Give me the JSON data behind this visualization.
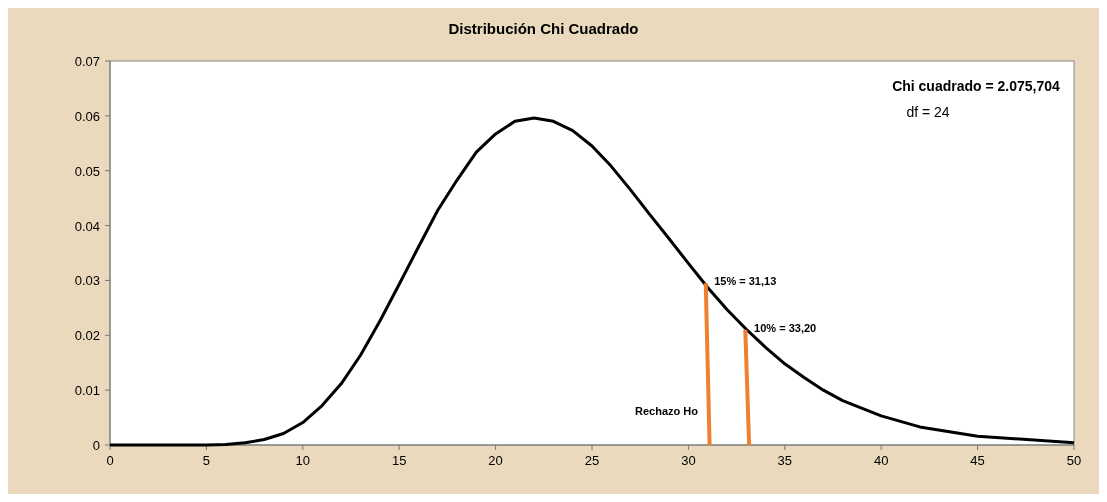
{
  "chart_data": {
    "type": "line",
    "title": "Distribución Chi Cuadrado",
    "x": [
      0,
      1,
      2,
      3,
      4,
      5,
      6,
      7,
      8,
      9,
      10,
      11,
      12,
      13,
      14,
      15,
      16,
      17,
      18,
      19,
      20,
      21,
      22,
      23,
      24,
      25,
      26,
      27,
      28,
      29,
      30,
      31,
      32,
      33,
      34,
      35,
      36,
      37,
      38,
      40,
      42,
      45,
      50
    ],
    "series": [
      {
        "color": "#000000",
        "values": [
          0,
          0,
          0,
          0,
          0,
          0,
          0.0001,
          0.0004,
          0.001,
          0.0021,
          0.0041,
          0.0072,
          0.0112,
          0.0164,
          0.0226,
          0.0293,
          0.0361,
          0.0428,
          0.0483,
          0.0534,
          0.0567,
          0.059,
          0.0596,
          0.059,
          0.0573,
          0.0545,
          0.0508,
          0.0465,
          0.042,
          0.0376,
          0.0331,
          0.0287,
          0.0247,
          0.0211,
          0.0178,
          0.0148,
          0.0123,
          0.01,
          0.0081,
          0.0053,
          0.0033,
          0.0016,
          0.0004
        ]
      },
      {
        "color": "#f08030",
        "x": [
          30.9,
          31.1
        ],
        "values": [
          0.0295,
          0
        ]
      },
      {
        "color": "#f08030",
        "x": [
          32.95,
          33.15
        ],
        "values": [
          0.021,
          0
        ]
      }
    ],
    "xlim": [
      0,
      50
    ],
    "xticks": [
      0,
      5,
      10,
      15,
      20,
      25,
      30,
      35,
      40,
      45,
      50
    ],
    "ylim": [
      0,
      0.07
    ],
    "yticks": [
      0,
      0.01,
      0.02,
      0.03,
      0.04,
      0.05,
      0.06,
      0.07
    ],
    "grid": false,
    "line_style": "solid",
    "annotations": [
      "Chi cuadrado = 2.075,704",
      "df = 24",
      {
        "text": "15% = 31,13",
        "x": 31.13,
        "y": 0.0295
      },
      {
        "text": "10% = 33,20",
        "x": 33.2,
        "y": 0.021
      },
      "Rechazo Ho"
    ]
  }
}
